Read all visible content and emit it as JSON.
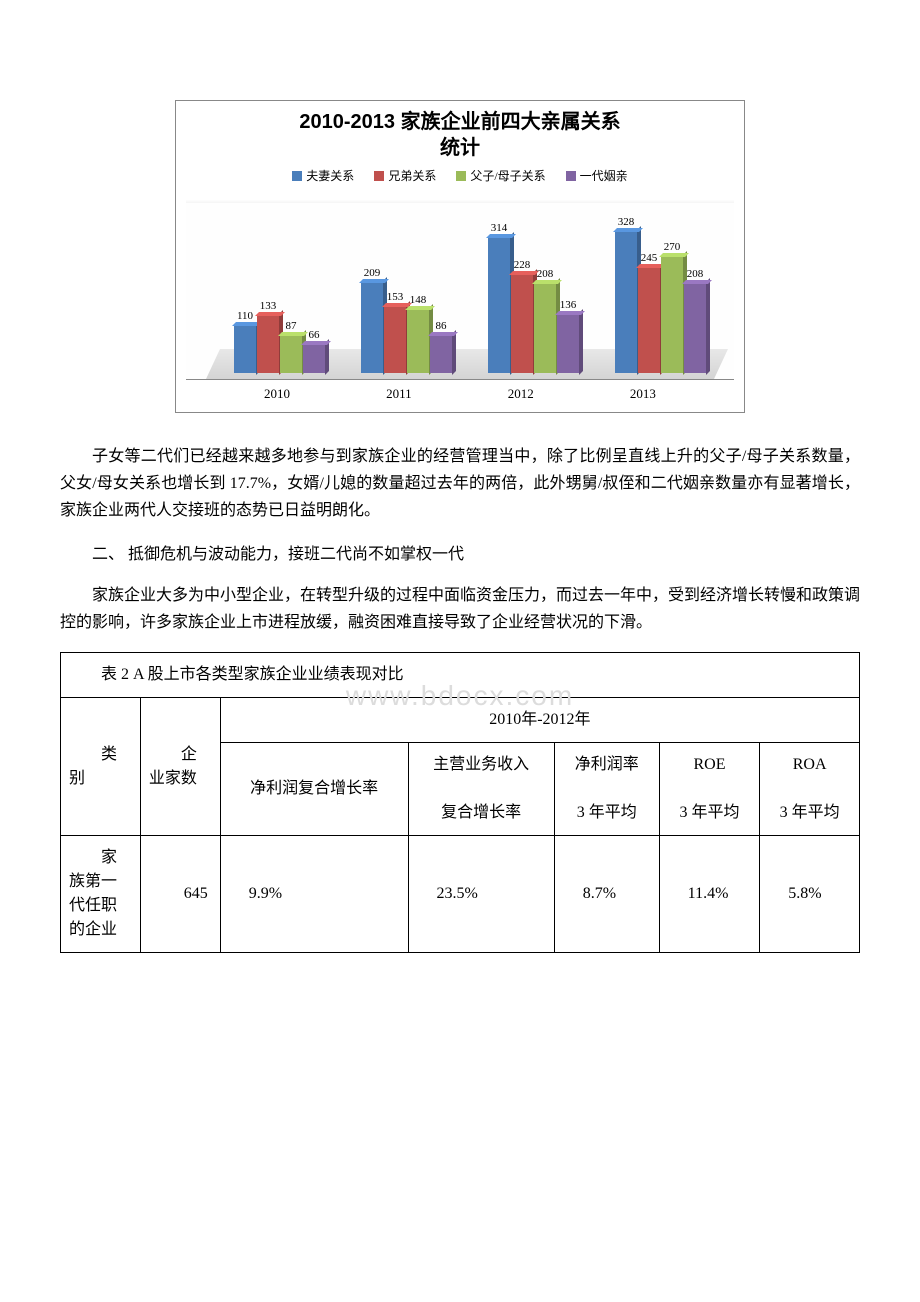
{
  "chart": {
    "type": "bar",
    "title_line1": "2010-2013 家族企业前四大亲属关系",
    "title_line2": "统计",
    "title_fontsize": 20,
    "legend": [
      {
        "label": "夫妻关系",
        "color": "#4a7ebb"
      },
      {
        "label": "兄弟关系",
        "color": "#c0504d"
      },
      {
        "label": "父子/母子关系",
        "color": "#9bbb59"
      },
      {
        "label": "一代姻亲",
        "color": "#8064a2"
      }
    ],
    "categories": [
      "2010",
      "2011",
      "2012",
      "2013"
    ],
    "series": [
      [
        110,
        133,
        87,
        66
      ],
      [
        209,
        153,
        148,
        86
      ],
      [
        314,
        228,
        208,
        136
      ],
      [
        328,
        245,
        270,
        208
      ]
    ],
    "ylim": [
      0,
      350
    ],
    "background_color": "#ffffff",
    "border_color": "#888888",
    "label_fontsize": 11,
    "axis_fontsize": 13
  },
  "paragraphs": {
    "p1": "子女等二代们已经越来越多地参与到家族企业的经营管理当中，除了比例呈直线上升的父子/母子关系数量，父女/母女关系也增长到 17.7%，女婿/儿媳的数量超过去年的两倍，此外甥舅/叔侄和二代姻亲数量亦有显著增长，家族企业两代人交接班的态势已日益明朗化。",
    "heading": "二、 抵御危机与波动能力，接班二代尚不如掌权一代",
    "p2": "家族企业大多为中小型企业，在转型升级的过程中面临资金压力，而过去一年中，受到经济增长转慢和政策调控的影响，许多家族企业上市进程放缓，融资困难直接导致了企业经营状况的下滑。"
  },
  "table": {
    "caption": "表 2 A 股上市各类型家族企业业绩表现对比",
    "header_period": "2010年-2012年",
    "cols": {
      "c1": "类别",
      "c2": "企业家数",
      "c3": "净利润复合增长率",
      "c4a": "主营业务收入",
      "c4b": "复合增长率",
      "c5a": "净利润率",
      "c5b": "3 年平均",
      "c6a": "ROE",
      "c6b": "3 年平均",
      "c7a": "ROA",
      "c7b": "3 年平均"
    },
    "row1": {
      "category": "家族第一代任职的企业",
      "count": "645",
      "v1": "9.9%",
      "v2": "23.5%",
      "v3": "8.7%",
      "v4": "11.4%",
      "v5": "5.8%"
    }
  },
  "watermark": "www.bdocx.com"
}
